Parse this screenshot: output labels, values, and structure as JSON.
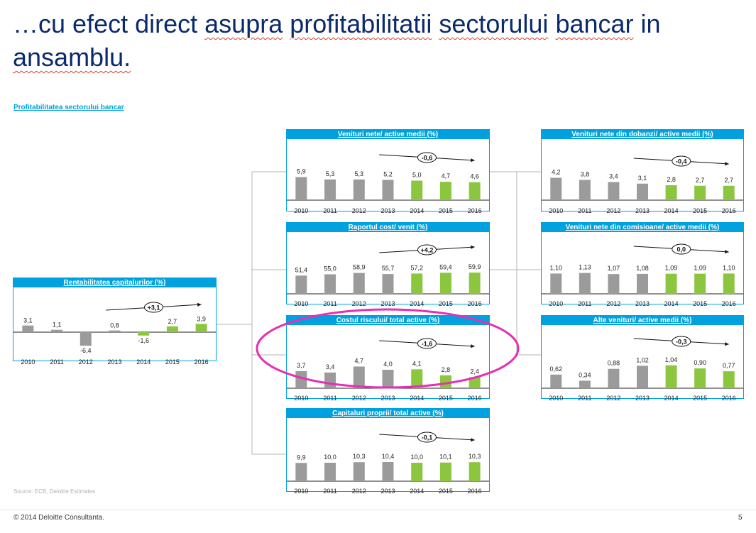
{
  "page": {
    "title": "…cu efect direct asupra profitabilitatii sectorului bancar in ansamblu.",
    "subtitle": "Profitabilitatea sectorului bancar",
    "source": "Source: ECB, Deloitte Estimates",
    "footer": "© 2014 Deloitte Consultanta.",
    "page_number": "5"
  },
  "colors": {
    "header": "#00a1de",
    "actual_bar": "#9b9b9b",
    "forecast_bar": "#8cc63f",
    "title_text": "#0b2a6e",
    "highlight_ellipse": "#e62fb3"
  },
  "chart_data": [
    {
      "id": "roe",
      "type": "bar",
      "title": "Rentabilitatea capitalurilor (%)",
      "categories": [
        "2010",
        "2011",
        "2012",
        "2013",
        "2014",
        "2015",
        "2016"
      ],
      "values": [
        3.1,
        1.1,
        -6.4,
        0.8,
        -1.6,
        2.7,
        3.9
      ],
      "labels": [
        "3,1",
        "1,1",
        "-6,4",
        "0,8",
        "-1,6",
        "2,7",
        "3,9"
      ],
      "forecast_from": "2014",
      "change": "+3,1"
    },
    {
      "id": "net_revenue",
      "type": "bar",
      "title": "Venituri nete/ active medii (%)",
      "categories": [
        "2010",
        "2011",
        "2012",
        "2013",
        "2014",
        "2015",
        "2016"
      ],
      "values": [
        5.9,
        5.3,
        5.3,
        5.2,
        5.0,
        4.7,
        4.6
      ],
      "labels": [
        "5,9",
        "5,3",
        "5,3",
        "5,2",
        "5,0",
        "4,7",
        "4,6"
      ],
      "forecast_from": "2014",
      "change": "-0,6"
    },
    {
      "id": "cost_income",
      "type": "bar",
      "title": "Raportul cost/ venit (%)",
      "categories": [
        "2010",
        "2011",
        "2012",
        "2013",
        "2014",
        "2015",
        "2016"
      ],
      "values": [
        51.4,
        55.0,
        58.9,
        55.7,
        57.2,
        59.4,
        59.9
      ],
      "labels": [
        "51,4",
        "55,0",
        "58,9",
        "55,7",
        "57,2",
        "59,4",
        "59,9"
      ],
      "forecast_from": "2014",
      "change": "+4,2"
    },
    {
      "id": "cost_of_risk",
      "type": "bar",
      "title": "Costul riscului/ total active (%)",
      "categories": [
        "2010",
        "2011",
        "2012",
        "2013",
        "2014",
        "2015",
        "2016"
      ],
      "values": [
        3.7,
        3.4,
        4.7,
        4.0,
        4.1,
        2.8,
        2.4
      ],
      "labels": [
        "3,7",
        "3,4",
        "4,7",
        "4,0",
        "4,1",
        "2,8",
        "2,4"
      ],
      "forecast_from": "2014",
      "change": "-1,6"
    },
    {
      "id": "equity_assets",
      "type": "bar",
      "title": "Capitaluri proprii/ total active (%)",
      "categories": [
        "2010",
        "2011",
        "2012",
        "2013",
        "2014",
        "2015",
        "2016"
      ],
      "values": [
        9.9,
        10.0,
        10.3,
        10.4,
        10.0,
        10.1,
        10.3
      ],
      "labels": [
        "9,9",
        "10,0",
        "10,3",
        "10,4",
        "10,0",
        "10,1",
        "10,3"
      ],
      "forecast_from": "2014",
      "change": "-0,1"
    },
    {
      "id": "net_interest",
      "type": "bar",
      "title": "Venituri nete din dobanzi/ active medii (%)",
      "categories": [
        "2010",
        "2011",
        "2012",
        "2013",
        "2014",
        "2015",
        "2016"
      ],
      "values": [
        4.2,
        3.8,
        3.4,
        3.1,
        2.8,
        2.7,
        2.7
      ],
      "labels": [
        "4,2",
        "3,8",
        "3,4",
        "3,1",
        "2,8",
        "2,7",
        "2,7"
      ],
      "forecast_from": "2014",
      "change": "-0,4"
    },
    {
      "id": "net_fees",
      "type": "bar",
      "title": "Venituri nete din comisioane/ active medii  (%)",
      "categories": [
        "2010",
        "2011",
        "2012",
        "2013",
        "2014",
        "2015",
        "2016"
      ],
      "values": [
        1.1,
        1.13,
        1.07,
        1.08,
        1.09,
        1.09,
        1.1
      ],
      "labels": [
        "1,10",
        "1,13",
        "1,07",
        "1,08",
        "1,09",
        "1,09",
        "1,10"
      ],
      "forecast_from": "2014",
      "change": "0,0"
    },
    {
      "id": "other_income",
      "type": "bar",
      "title": "Alte venituri/ active medii (%)",
      "categories": [
        "2010",
        "2011",
        "2012",
        "2013",
        "2014",
        "2015",
        "2016"
      ],
      "values": [
        0.62,
        0.34,
        0.88,
        1.02,
        1.04,
        0.9,
        0.77
      ],
      "labels": [
        "0,62",
        "0,34",
        "0,88",
        "1,02",
        "1,04",
        "0,90",
        "0,77"
      ],
      "forecast_from": "2014",
      "change": "-0,3"
    }
  ]
}
